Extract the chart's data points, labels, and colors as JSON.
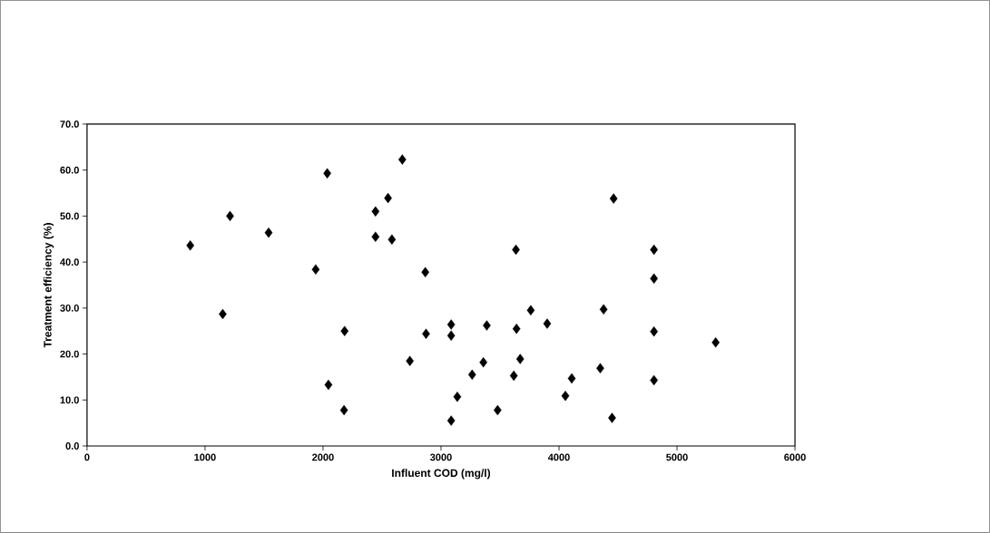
{
  "chart_data": {
    "type": "scatter",
    "xlabel": "Influent COD (mg/l)",
    "ylabel": "Treatment efficiency (%)",
    "x": [
      875,
      1150,
      1212,
      1539,
      1938,
      2036,
      2046,
      2183,
      2178,
      2445,
      2445,
      2551,
      2584,
      2672,
      2736,
      2867,
      2873,
      3086,
      3086,
      3086,
      3138,
      3264,
      3359,
      3388,
      3480,
      3617,
      3635,
      3640,
      3671,
      3761,
      3900,
      4054,
      4108,
      4350,
      4378,
      4450,
      4463,
      4805,
      4805,
      4805,
      4805,
      5328
    ],
    "values": [
      43.6,
      28.7,
      50.0,
      46.4,
      38.4,
      59.3,
      13.3,
      25.0,
      7.8,
      51.0,
      45.5,
      53.9,
      44.9,
      62.3,
      18.5,
      37.8,
      24.4,
      26.4,
      24.0,
      5.5,
      10.7,
      15.5,
      18.2,
      26.2,
      7.8,
      15.3,
      42.7,
      25.5,
      18.9,
      29.5,
      26.6,
      10.9,
      14.7,
      16.9,
      29.7,
      6.1,
      53.8,
      42.7,
      36.4,
      24.9,
      14.3,
      22.5
    ],
    "color": "#000000",
    "marker": "diamond",
    "xlim": [
      0,
      6000
    ],
    "xticks": [
      0,
      1000,
      2000,
      3000,
      4000,
      5000,
      6000
    ],
    "ylim": [
      0,
      70
    ],
    "yticks": [
      {
        "value": 0,
        "label": "0.0"
      },
      {
        "value": 10,
        "label": "10.0"
      },
      {
        "value": 20,
        "label": "20.0"
      },
      {
        "value": 30,
        "label": "30.0"
      },
      {
        "value": 40,
        "label": "40.0"
      },
      {
        "value": 50,
        "label": "50.0"
      },
      {
        "value": 60,
        "label": "60.0"
      },
      {
        "value": 70,
        "label": "70.0"
      }
    ]
  }
}
